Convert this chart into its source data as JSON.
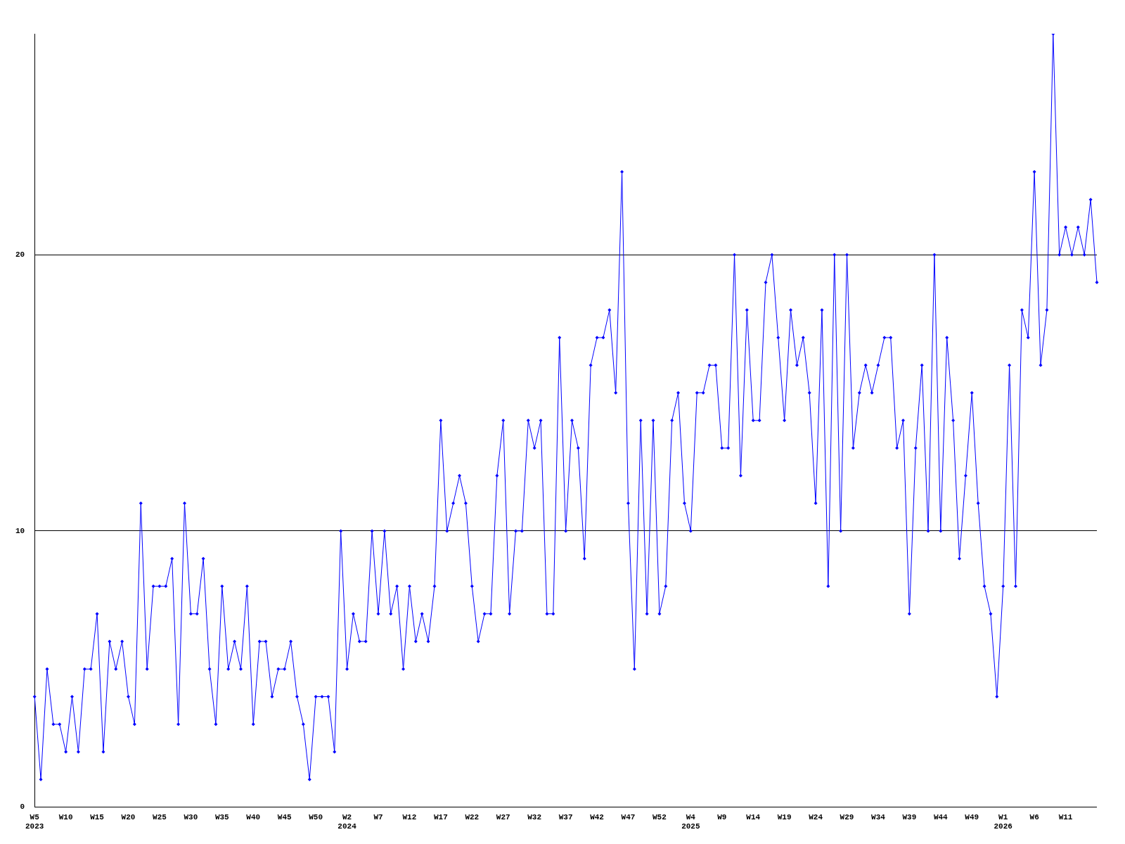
{
  "chart_data": {
    "type": "line",
    "categories": [
      "W5\n2023",
      null,
      null,
      null,
      null,
      "W10",
      null,
      null,
      null,
      null,
      "W15",
      null,
      null,
      null,
      null,
      "W20",
      null,
      null,
      null,
      null,
      "W25",
      null,
      null,
      null,
      null,
      "W30",
      null,
      null,
      null,
      null,
      "W35",
      null,
      null,
      null,
      null,
      "W40",
      null,
      null,
      null,
      null,
      "W45",
      null,
      null,
      null,
      null,
      "W50",
      null,
      null,
      null,
      null,
      "W2\n2024",
      null,
      null,
      null,
      null,
      "W7",
      null,
      null,
      null,
      null,
      "W12",
      null,
      null,
      null,
      null,
      "W17",
      null,
      null,
      null,
      null,
      "W22",
      null,
      null,
      null,
      null,
      "W27",
      null,
      null,
      null,
      null,
      "W32",
      null,
      null,
      null,
      null,
      "W37",
      null,
      null,
      null,
      null,
      "W42",
      null,
      null,
      null,
      null,
      "W47",
      null,
      null,
      null,
      null,
      "W52",
      null,
      null,
      null,
      null,
      "W4\n2025",
      null,
      null,
      null,
      null,
      "W9",
      null,
      null,
      null,
      null,
      "W14",
      null,
      null,
      null,
      null,
      "W19",
      null,
      null,
      null,
      null,
      "W24",
      null,
      null,
      null,
      null,
      "W29",
      null,
      null,
      null,
      null,
      "W34",
      null,
      null,
      null,
      null,
      "W39",
      null,
      null,
      null,
      null,
      "W44",
      null,
      null,
      null,
      null,
      "W49",
      null,
      null,
      null,
      null,
      "W1\n2026",
      null,
      null,
      null,
      null,
      "W6",
      null,
      null,
      null,
      null,
      "W11",
      null,
      null,
      null,
      null,
      null
    ],
    "series": [
      {
        "color": "#0000ff",
        "values": [
          4,
          1,
          5,
          3,
          3,
          2,
          4,
          2,
          5,
          5,
          7,
          2,
          6,
          5,
          6,
          4,
          3,
          11,
          5,
          8,
          8,
          8,
          9,
          3,
          11,
          7,
          7,
          9,
          5,
          3,
          8,
          5,
          6,
          5,
          8,
          3,
          6,
          6,
          4,
          5,
          5,
          6,
          4,
          3,
          1,
          4,
          4,
          4,
          2,
          10,
          5,
          7,
          6,
          6,
          10,
          7,
          10,
          7,
          8,
          5,
          8,
          6,
          7,
          6,
          8,
          14,
          10,
          11,
          12,
          11,
          8,
          6,
          7,
          7,
          12,
          14,
          7,
          10,
          10,
          14,
          13,
          14,
          7,
          7,
          17,
          10,
          14,
          13,
          9,
          16,
          17,
          17,
          18,
          15,
          23,
          11,
          5,
          14,
          7,
          14,
          7,
          8,
          14,
          15,
          11,
          10,
          15,
          15,
          16,
          16,
          13,
          13,
          20,
          12,
          18,
          14,
          14,
          19,
          20,
          17,
          14,
          18,
          16,
          17,
          15,
          11,
          18,
          8,
          20,
          10,
          20,
          13,
          15,
          16,
          15,
          16,
          17,
          17,
          13,
          14,
          7,
          13,
          16,
          10,
          20,
          10,
          17,
          14,
          9,
          12,
          15,
          11,
          8,
          7,
          4,
          8,
          16,
          8,
          18,
          17,
          23,
          16,
          18,
          28,
          20,
          21,
          20,
          21,
          20,
          22,
          19
        ]
      }
    ],
    "ylim": [
      0,
      28
    ],
    "yticks": [
      0,
      10,
      20
    ],
    "grid": "y",
    "marker": "diamond",
    "line_style": "solid",
    "legend": false
  }
}
